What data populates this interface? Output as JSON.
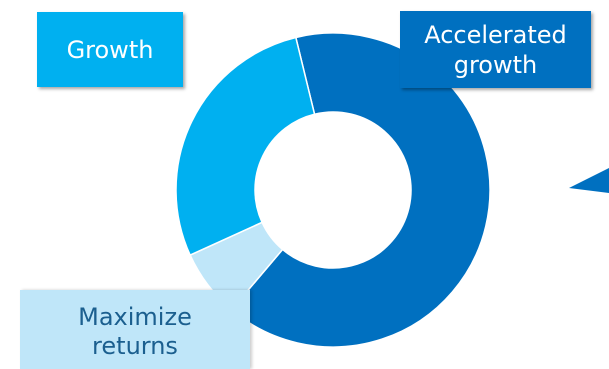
{
  "chart_data": {
    "type": "pie",
    "variant": "donut",
    "categories": [
      "Accelerated growth",
      "Maximize returns",
      "Growth"
    ],
    "values": [
      65,
      7,
      28
    ],
    "colors": [
      "#0070c0",
      "#bfe6f9",
      "#00b0f0"
    ],
    "legend": "none"
  },
  "label_boxes": {
    "growth": {
      "background": "#00b0f0",
      "text_color": "#ffffff"
    },
    "accelerated_growth": {
      "background": "#0070c0",
      "text_color": "#ffffff"
    },
    "maximize_returns": {
      "background": "#bfe6f9",
      "text_color": "#1b5f8f"
    }
  },
  "arrow_color": "#0070c0"
}
